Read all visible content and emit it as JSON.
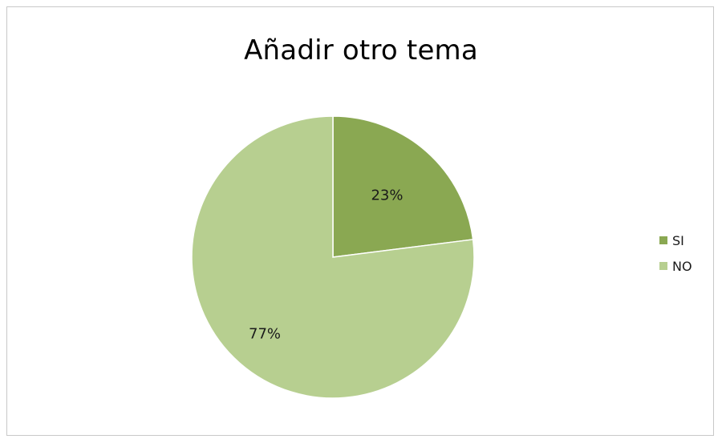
{
  "chart_data": {
    "type": "pie",
    "title": "Añadir otro tema",
    "slices": [
      {
        "label": "SI",
        "value": 23,
        "data_label": "23%",
        "color": "#8aa852"
      },
      {
        "label": "NO",
        "value": 77,
        "data_label": "77%",
        "color": "#b7cf90"
      }
    ],
    "legend_position": "right"
  }
}
